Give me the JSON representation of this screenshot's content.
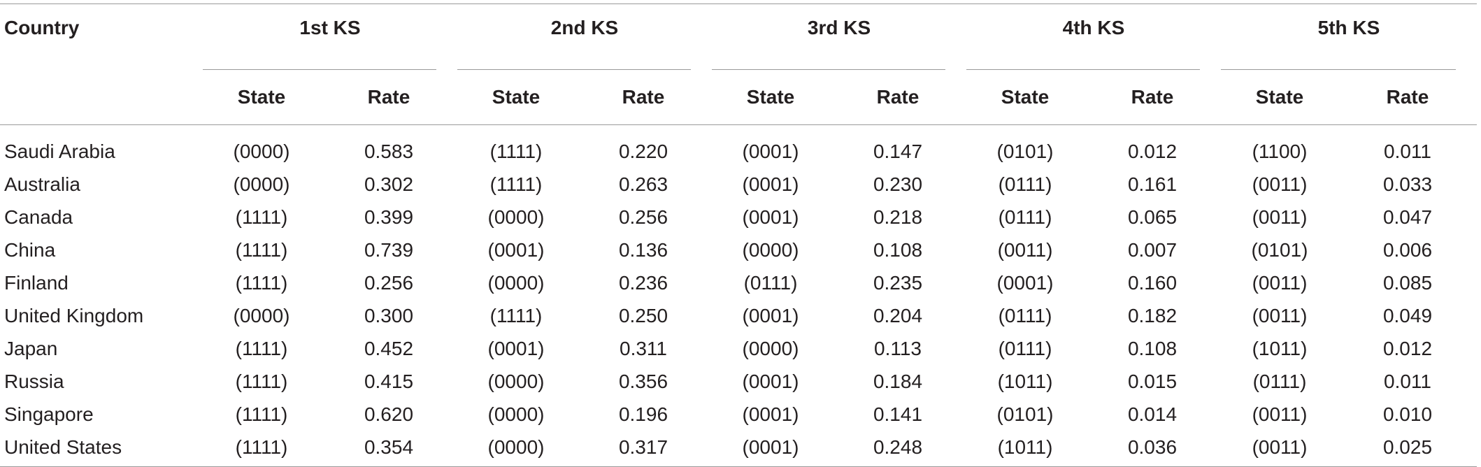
{
  "table": {
    "country_header": "Country",
    "groups": [
      "1st KS",
      "2nd KS",
      "3rd KS",
      "4th KS",
      "5th KS"
    ],
    "sub_headers": [
      "State",
      "Rate"
    ],
    "rows": [
      {
        "country": "Saudi Arabia",
        "cells": [
          "(0000)",
          "0.583",
          "(1111)",
          "0.220",
          "(0001)",
          "0.147",
          "(0101)",
          "0.012",
          "(1100)",
          "0.011"
        ]
      },
      {
        "country": "Australia",
        "cells": [
          "(0000)",
          "0.302",
          "(1111)",
          "0.263",
          "(0001)",
          "0.230",
          "(0111)",
          "0.161",
          "(0011)",
          "0.033"
        ]
      },
      {
        "country": "Canada",
        "cells": [
          "(1111)",
          "0.399",
          "(0000)",
          "0.256",
          "(0001)",
          "0.218",
          "(0111)",
          "0.065",
          "(0011)",
          "0.047"
        ]
      },
      {
        "country": "China",
        "cells": [
          "(1111)",
          "0.739",
          "(0001)",
          "0.136",
          "(0000)",
          "0.108",
          "(0011)",
          "0.007",
          "(0101)",
          "0.006"
        ]
      },
      {
        "country": "Finland",
        "cells": [
          "(1111)",
          "0.256",
          "(0000)",
          "0.236",
          "(0111)",
          "0.235",
          "(0001)",
          "0.160",
          "(0011)",
          "0.085"
        ]
      },
      {
        "country": "United Kingdom",
        "cells": [
          "(0000)",
          "0.300",
          "(1111)",
          "0.250",
          "(0001)",
          "0.204",
          "(0111)",
          "0.182",
          "(0011)",
          "0.049"
        ]
      },
      {
        "country": "Japan",
        "cells": [
          "(1111)",
          "0.452",
          "(0001)",
          "0.311",
          "(0000)",
          "0.113",
          "(0111)",
          "0.108",
          "(1011)",
          "0.012"
        ]
      },
      {
        "country": "Russia",
        "cells": [
          "(1111)",
          "0.415",
          "(0000)",
          "0.356",
          "(0001)",
          "0.184",
          "(1011)",
          "0.015",
          "(0111)",
          "0.011"
        ]
      },
      {
        "country": "Singapore",
        "cells": [
          "(1111)",
          "0.620",
          "(0000)",
          "0.196",
          "(0001)",
          "0.141",
          "(0101)",
          "0.014",
          "(0011)",
          "0.010"
        ]
      },
      {
        "country": "United States",
        "cells": [
          "(1111)",
          "0.354",
          "(0000)",
          "0.317",
          "(0001)",
          "0.248",
          "(1011)",
          "0.036",
          "(0011)",
          "0.025"
        ]
      }
    ]
  }
}
